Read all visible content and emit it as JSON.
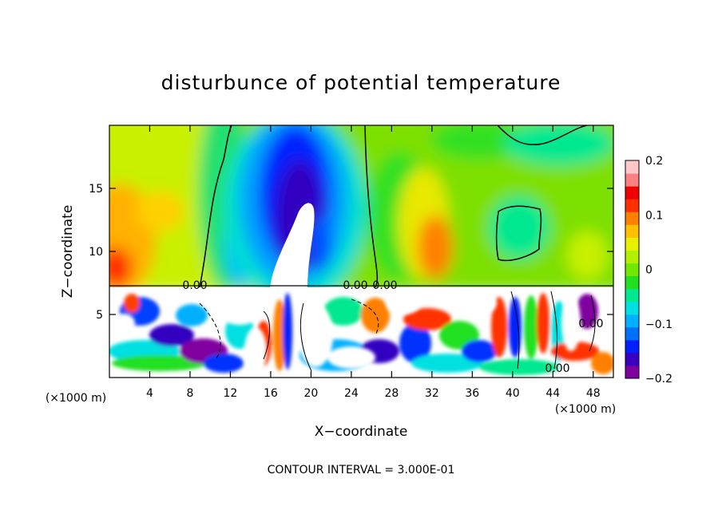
{
  "chart_data": {
    "type": "heatmap",
    "title": "disturbunce of potential temperature",
    "xlabel": "X−coordinate",
    "ylabel": "Z−coordinate",
    "x_unit": "(×1000 m)",
    "y_unit": "(×1000 m)",
    "xlim": [
      0,
      50
    ],
    "ylim": [
      0,
      20
    ],
    "x_ticks": [
      4,
      8,
      12,
      16,
      20,
      24,
      28,
      32,
      36,
      40,
      44,
      48
    ],
    "y_ticks": [
      5,
      10,
      15
    ],
    "colorbar": {
      "range": [
        -0.2,
        0.2
      ],
      "ticks": [
        0.2,
        0.1,
        0,
        -0.1,
        -0.2
      ],
      "tick_labels": [
        "0.2",
        "0.1",
        "0",
        "−0.1",
        "−0.2"
      ],
      "colors": [
        "#8000a0",
        "#3a00c0",
        "#0020ff",
        "#0070ff",
        "#00b0ff",
        "#00e0e0",
        "#00e890",
        "#20e020",
        "#70e800",
        "#b0f000",
        "#e8f000",
        "#ffc000",
        "#ff8000",
        "#ff3000",
        "#f00000",
        "#ff8080",
        "#ffc8c8"
      ]
    },
    "contour_labels": [
      "0.00",
      "0.00",
      "0.00",
      "0.00",
      "0.00"
    ],
    "footer": "CONTOUR INTERVAL = 3.000E-01"
  }
}
